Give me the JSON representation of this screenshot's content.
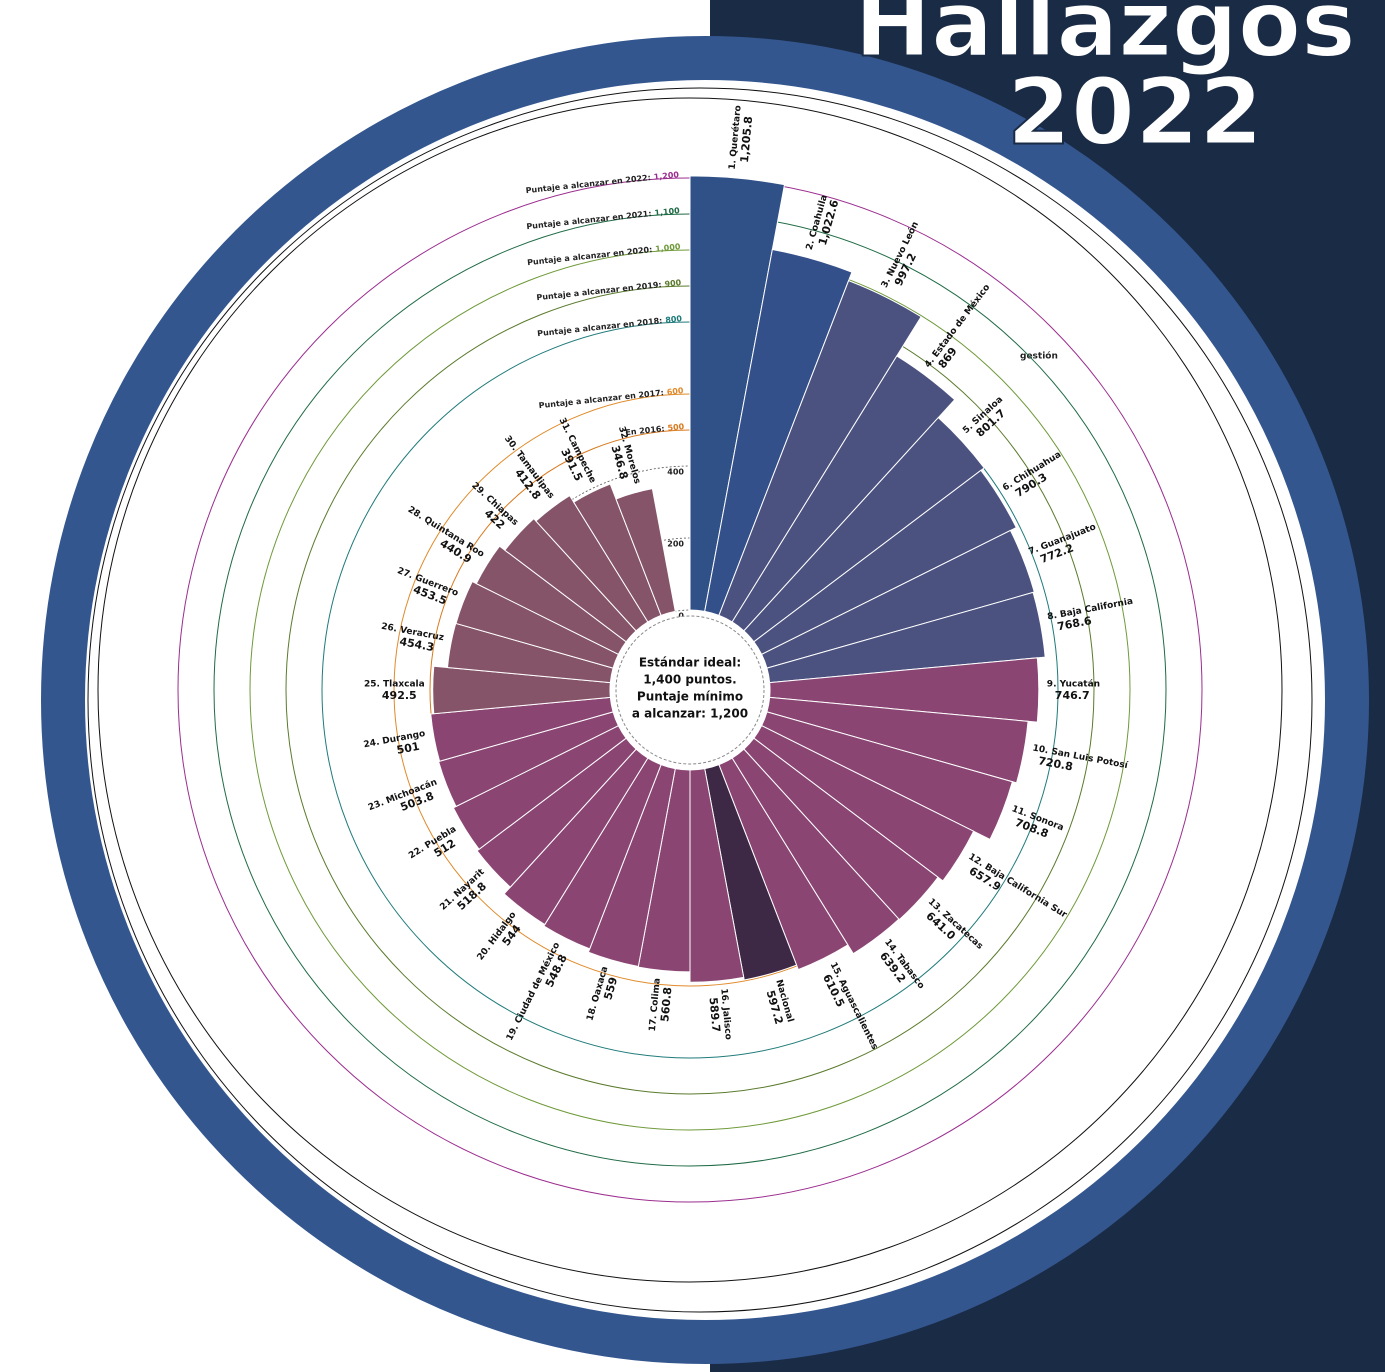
{
  "chart_data": {
    "type": "radial_bar",
    "title": [
      "Hallazgos",
      "2022"
    ],
    "center_text": [
      "Estándar ideal:",
      "1,400 puntos.",
      "Puntaje mínimo",
      "a alcanzar: 1,200"
    ],
    "annotation": "gestión",
    "categories": [
      "1. Querétaro",
      "2. Coahuila",
      "3. Nuevo León",
      "4. Estado de México",
      "5. Sinaloa",
      "6. Chihuahua",
      "7. Guanajuato",
      "8. Baja California",
      "9. Yucatán",
      "10. San Luis Potosí",
      "11. Sonora",
      "12. Baja California Sur",
      "13. Zacatecas",
      "14. Tabasco",
      "15. Aguascalientes",
      "Nacional",
      "16. Jalisco",
      "17. Colima",
      "18. Oaxaca",
      "19. Ciudad de México",
      "20. Hidalgo",
      "21. Nayarit",
      "22. Puebla",
      "23. Michoacán",
      "24. Durango",
      "25. Tlaxcala",
      "26. Veracruz",
      "27. Guerrero",
      "28. Quintana Roo",
      "29. Chiapas",
      "30. Tamaulipas",
      "31. Campeche",
      "32. Morelos"
    ],
    "values": [
      1205.8,
      1022.6,
      997.2,
      869,
      801.7,
      790.3,
      772.2,
      768.6,
      746.7,
      720.8,
      708.8,
      657.9,
      641.0,
      639.2,
      610.5,
      597.2,
      589.7,
      560.8,
      559,
      548.8,
      544,
      518.8,
      512,
      503.8,
      501,
      492.5,
      454.3,
      453.5,
      440.9,
      422,
      412.8,
      391.5,
      346.8
    ],
    "value_labels": [
      "1,205.8",
      "1,022.6",
      "997.2",
      "869",
      "801.7",
      "790.3",
      "772.2",
      "768.6",
      "746.7",
      "720.8",
      "708.8",
      "657.9",
      "641.0",
      "639.2",
      "610.5",
      "597.2",
      "589.7",
      "560.8",
      "559",
      "548.8",
      "544",
      "518.8",
      "512",
      "503.8",
      "501",
      "492.5",
      "454.3",
      "453.5",
      "440.9",
      "422",
      "412.8",
      "391.5",
      "346.8"
    ],
    "colors": [
      "#2f5188",
      "#34508a",
      "#4b5280",
      "#4b5280",
      "#4b5280",
      "#4b5280",
      "#4b5280",
      "#4b5280",
      "#8a4573",
      "#8a4573",
      "#8a4573",
      "#8a4573",
      "#8a4573",
      "#8a4573",
      "#8a4573",
      "#3d2846",
      "#8a4573",
      "#8a4573",
      "#8a4573",
      "#8a4573",
      "#8a4573",
      "#8a4573",
      "#8a4573",
      "#8a4573",
      "#8a4573",
      "#855468",
      "#855468",
      "#855468",
      "#855468",
      "#855468",
      "#855468",
      "#855468",
      "#855468"
    ],
    "ylim": [
      0,
      1400
    ],
    "yticks": [
      0,
      200,
      400
    ],
    "reference_lines": [
      {
        "label": "Puntaje a alcanzar en 2022:",
        "value": 1200,
        "value_label": "1,200",
        "color": "#9b2d8f"
      },
      {
        "label": "Puntaje a alcanzar en 2021:",
        "value": 1100,
        "value_label": "1,100",
        "color": "#1f6b45"
      },
      {
        "label": "Puntaje a alcanzar en 2020:",
        "value": 1000,
        "value_label": "1,000",
        "color": "#6f9a3a"
      },
      {
        "label": "Puntaje a alcanzar en 2019:",
        "value": 900,
        "value_label": "900",
        "color": "#5a7a2c"
      },
      {
        "label": "Puntaje a alcanzar en 2018:",
        "value": 800,
        "value_label": "800",
        "color": "#1f7a7a"
      },
      {
        "label": "Puntaje a alcanzar en 2017:",
        "value": 600,
        "value_label": "600",
        "color": "#e08a2a"
      },
      {
        "label": "En 2016:",
        "value": 500,
        "value_label": "500",
        "color": "#d97a20"
      }
    ]
  }
}
